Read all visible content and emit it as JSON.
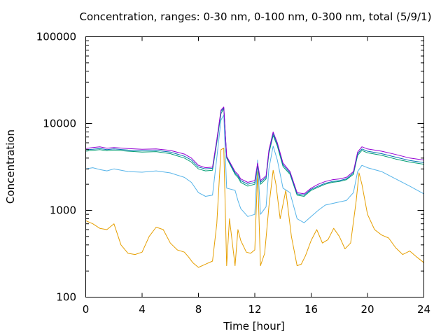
{
  "chart_data": {
    "type": "line",
    "title": "Concentration, ranges: 0-30 nm, 0-100 nm, 0-300 nm, total (5/9/1)",
    "xlabel": "Time [hour]",
    "ylabel": "Concentration",
    "xlim": [
      0,
      24
    ],
    "ylim": [
      100,
      100000
    ],
    "yscale": "log",
    "xticks": [
      0,
      4,
      8,
      12,
      16,
      20,
      24
    ],
    "yticks": [
      100,
      1000,
      10000,
      100000
    ],
    "xtick_labels": [
      "0",
      "4",
      "8",
      "12",
      "16",
      "20",
      "24"
    ],
    "ytick_labels": [
      "100",
      "1000",
      "10000",
      "100000"
    ],
    "grid": false,
    "legend": "none",
    "series": [
      {
        "color": "#e69f00",
        "points": [
          [
            0,
            760
          ],
          [
            0.5,
            700
          ],
          [
            1,
            620
          ],
          [
            1.5,
            600
          ],
          [
            2,
            700
          ],
          [
            2.2,
            560
          ],
          [
            2.5,
            400
          ],
          [
            3,
            320
          ],
          [
            3.5,
            310
          ],
          [
            4,
            330
          ],
          [
            4.5,
            500
          ],
          [
            5,
            640
          ],
          [
            5.5,
            600
          ],
          [
            6,
            420
          ],
          [
            6.5,
            350
          ],
          [
            7,
            330
          ],
          [
            7.3,
            290
          ],
          [
            7.6,
            250
          ],
          [
            8,
            220
          ],
          [
            8.5,
            240
          ],
          [
            9,
            260
          ],
          [
            9.3,
            700
          ],
          [
            9.6,
            5000
          ],
          [
            9.8,
            5200
          ],
          [
            10,
            230
          ],
          [
            10.2,
            800
          ],
          [
            10.6,
            230
          ],
          [
            10.8,
            600
          ],
          [
            11,
            450
          ],
          [
            11.4,
            330
          ],
          [
            11.7,
            320
          ],
          [
            12,
            350
          ],
          [
            12.2,
            2800
          ],
          [
            12.4,
            230
          ],
          [
            12.7,
            320
          ],
          [
            13,
            1100
          ],
          [
            13.3,
            2900
          ],
          [
            13.5,
            2000
          ],
          [
            13.8,
            800
          ],
          [
            14.2,
            1700
          ],
          [
            14.6,
            500
          ],
          [
            15,
            230
          ],
          [
            15.3,
            240
          ],
          [
            15.6,
            300
          ],
          [
            16,
            450
          ],
          [
            16.4,
            600
          ],
          [
            16.8,
            420
          ],
          [
            17.2,
            460
          ],
          [
            17.6,
            620
          ],
          [
            18,
            500
          ],
          [
            18.4,
            360
          ],
          [
            18.8,
            420
          ],
          [
            19.2,
            1300
          ],
          [
            19.4,
            2700
          ],
          [
            19.6,
            2000
          ],
          [
            20,
            900
          ],
          [
            20.5,
            600
          ],
          [
            21,
            520
          ],
          [
            21.5,
            480
          ],
          [
            22,
            370
          ],
          [
            22.5,
            310
          ],
          [
            23,
            340
          ],
          [
            23.5,
            290
          ],
          [
            24,
            250
          ]
        ]
      },
      {
        "color": "#56b4e9",
        "points": [
          [
            0,
            3000
          ],
          [
            0.5,
            3100
          ],
          [
            1,
            2950
          ],
          [
            1.5,
            2850
          ],
          [
            2,
            3000
          ],
          [
            3,
            2800
          ],
          [
            4,
            2750
          ],
          [
            5,
            2850
          ],
          [
            6,
            2700
          ],
          [
            7,
            2400
          ],
          [
            7.5,
            2100
          ],
          [
            8,
            1600
          ],
          [
            8.5,
            1450
          ],
          [
            9,
            1500
          ],
          [
            9.3,
            4000
          ],
          [
            9.6,
            11000
          ],
          [
            9.8,
            12500
          ],
          [
            10,
            1800
          ],
          [
            10.6,
            1700
          ],
          [
            10.8,
            1300
          ],
          [
            11,
            1050
          ],
          [
            11.5,
            850
          ],
          [
            12,
            900
          ],
          [
            12.2,
            3800
          ],
          [
            12.4,
            900
          ],
          [
            12.8,
            1100
          ],
          [
            13,
            3000
          ],
          [
            13.3,
            5500
          ],
          [
            13.6,
            3800
          ],
          [
            14,
            1800
          ],
          [
            14.5,
            1600
          ],
          [
            15,
            800
          ],
          [
            15.5,
            720
          ],
          [
            16,
            850
          ],
          [
            16.5,
            1000
          ],
          [
            17,
            1150
          ],
          [
            17.5,
            1200
          ],
          [
            18,
            1250
          ],
          [
            18.5,
            1300
          ],
          [
            19,
            1600
          ],
          [
            19.3,
            2800
          ],
          [
            19.6,
            3300
          ],
          [
            20,
            3100
          ],
          [
            21,
            2800
          ],
          [
            22,
            2300
          ],
          [
            23,
            1900
          ],
          [
            24,
            1550
          ]
        ]
      },
      {
        "color": "#009e73",
        "points": [
          [
            0,
            4800
          ],
          [
            0.5,
            4900
          ],
          [
            1,
            5000
          ],
          [
            1.5,
            4850
          ],
          [
            2,
            4950
          ],
          [
            3,
            4800
          ],
          [
            4,
            4700
          ],
          [
            5,
            4750
          ],
          [
            6,
            4500
          ],
          [
            7,
            4000
          ],
          [
            7.5,
            3600
          ],
          [
            8,
            3000
          ],
          [
            8.5,
            2850
          ],
          [
            9,
            2900
          ],
          [
            9.3,
            6000
          ],
          [
            9.6,
            13000
          ],
          [
            9.8,
            14800
          ],
          [
            10,
            4000
          ],
          [
            10.6,
            2600
          ],
          [
            10.8,
            2400
          ],
          [
            11,
            2100
          ],
          [
            11.5,
            1900
          ],
          [
            12,
            2000
          ],
          [
            12.2,
            3300
          ],
          [
            12.4,
            2000
          ],
          [
            12.8,
            2300
          ],
          [
            13,
            4500
          ],
          [
            13.3,
            7300
          ],
          [
            13.6,
            5500
          ],
          [
            14,
            3200
          ],
          [
            14.5,
            2600
          ],
          [
            15,
            1500
          ],
          [
            15.5,
            1450
          ],
          [
            16,
            1700
          ],
          [
            16.5,
            1850
          ],
          [
            17,
            2000
          ],
          [
            17.5,
            2100
          ],
          [
            18,
            2150
          ],
          [
            18.5,
            2250
          ],
          [
            19,
            2600
          ],
          [
            19.3,
            4300
          ],
          [
            19.6,
            4900
          ],
          [
            20,
            4600
          ],
          [
            21,
            4300
          ],
          [
            22,
            3900
          ],
          [
            23,
            3600
          ],
          [
            24,
            3400
          ]
        ]
      },
      {
        "color": "#0072b2",
        "points": [
          [
            0,
            5000
          ],
          [
            0.5,
            5050
          ],
          [
            1,
            5150
          ],
          [
            1.5,
            5000
          ],
          [
            2,
            5100
          ],
          [
            3,
            4950
          ],
          [
            4,
            4850
          ],
          [
            5,
            4900
          ],
          [
            6,
            4700
          ],
          [
            7,
            4200
          ],
          [
            7.5,
            3800
          ],
          [
            8,
            3150
          ],
          [
            8.5,
            3000
          ],
          [
            9,
            3050
          ],
          [
            9.3,
            6300
          ],
          [
            9.6,
            13800
          ],
          [
            9.8,
            15200
          ],
          [
            10,
            4100
          ],
          [
            10.6,
            2700
          ],
          [
            10.8,
            2500
          ],
          [
            11,
            2200
          ],
          [
            11.5,
            2000
          ],
          [
            12,
            2100
          ],
          [
            12.2,
            3400
          ],
          [
            12.4,
            2100
          ],
          [
            12.8,
            2400
          ],
          [
            13,
            4700
          ],
          [
            13.3,
            7700
          ],
          [
            13.6,
            5800
          ],
          [
            14,
            3350
          ],
          [
            14.5,
            2700
          ],
          [
            15,
            1550
          ],
          [
            15.5,
            1500
          ],
          [
            16,
            1750
          ],
          [
            16.5,
            1900
          ],
          [
            17,
            2050
          ],
          [
            17.5,
            2150
          ],
          [
            18,
            2200
          ],
          [
            18.5,
            2300
          ],
          [
            19,
            2700
          ],
          [
            19.3,
            4500
          ],
          [
            19.6,
            5100
          ],
          [
            20,
            4800
          ],
          [
            21,
            4500
          ],
          [
            22,
            4100
          ],
          [
            23,
            3750
          ],
          [
            24,
            3550
          ]
        ]
      },
      {
        "color": "#9400d3",
        "points": [
          [
            0,
            5150
          ],
          [
            0.5,
            5300
          ],
          [
            1,
            5400
          ],
          [
            1.5,
            5200
          ],
          [
            2,
            5300
          ],
          [
            3,
            5150
          ],
          [
            4,
            5050
          ],
          [
            5,
            5100
          ],
          [
            6,
            4900
          ],
          [
            7,
            4450
          ],
          [
            7.5,
            4000
          ],
          [
            8,
            3300
          ],
          [
            8.5,
            3100
          ],
          [
            9,
            3150
          ],
          [
            9.3,
            6500
          ],
          [
            9.6,
            14300
          ],
          [
            9.8,
            15500
          ],
          [
            10,
            4200
          ],
          [
            10.6,
            2800
          ],
          [
            10.8,
            2600
          ],
          [
            11,
            2300
          ],
          [
            11.5,
            2100
          ],
          [
            12,
            2200
          ],
          [
            12.2,
            3500
          ],
          [
            12.4,
            2200
          ],
          [
            12.8,
            2500
          ],
          [
            13,
            4900
          ],
          [
            13.3,
            8000
          ],
          [
            13.6,
            6000
          ],
          [
            14,
            3500
          ],
          [
            14.5,
            2800
          ],
          [
            15,
            1600
          ],
          [
            15.5,
            1550
          ],
          [
            16,
            1800
          ],
          [
            16.5,
            2000
          ],
          [
            17,
            2150
          ],
          [
            17.5,
            2250
          ],
          [
            18,
            2300
          ],
          [
            18.5,
            2400
          ],
          [
            19,
            2800
          ],
          [
            19.3,
            4700
          ],
          [
            19.6,
            5400
          ],
          [
            20,
            5100
          ],
          [
            21,
            4800
          ],
          [
            22,
            4400
          ],
          [
            23,
            4000
          ],
          [
            24,
            3800
          ]
        ]
      }
    ]
  }
}
